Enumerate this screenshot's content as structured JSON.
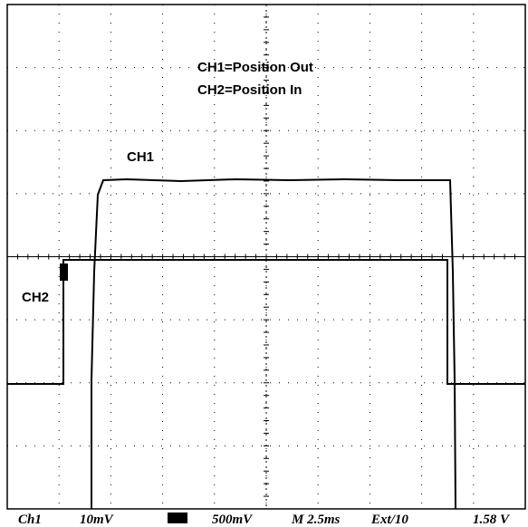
{
  "annotations": {
    "line1": "CH1=Position Out",
    "line2": "CH2=Position In",
    "ch1_label": "CH1",
    "ch2_label": "CH2"
  },
  "status_bar": {
    "channel": "Ch1",
    "ch1_scale": "10mV",
    "ch2_scale": "500mV",
    "timebase": "M 2.5ms",
    "trigger_source": "Ext/10",
    "trigger_level": "1.58 V"
  }
}
